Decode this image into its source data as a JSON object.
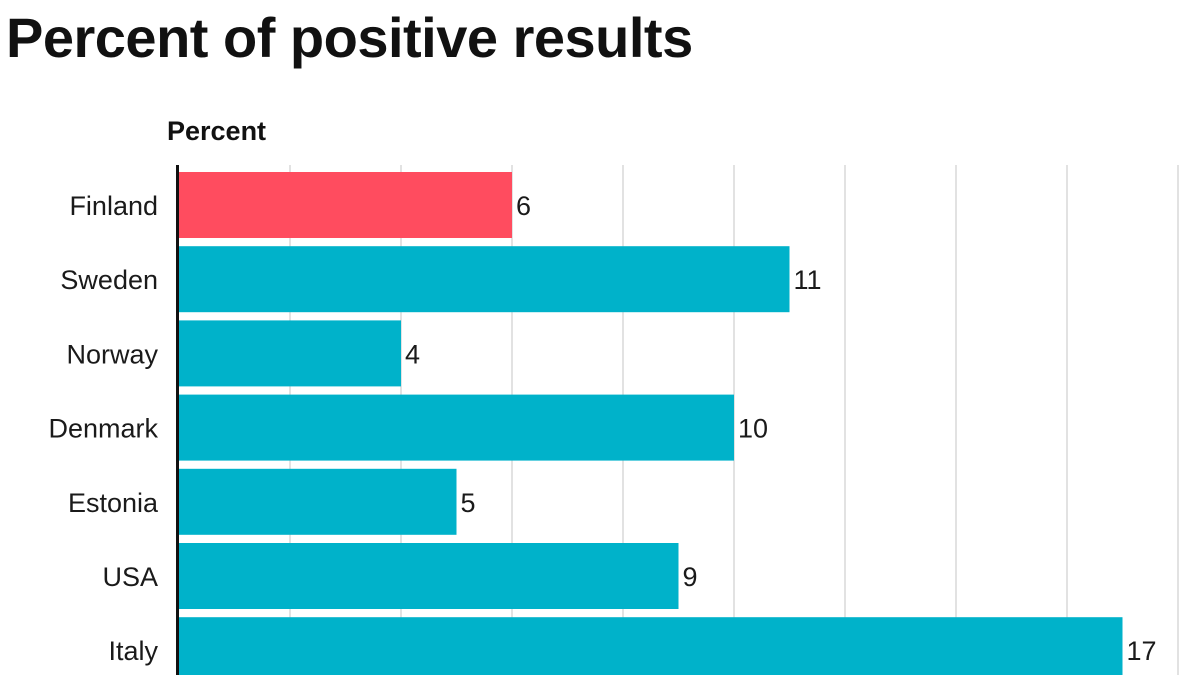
{
  "chart_data": {
    "type": "bar",
    "orientation": "horizontal",
    "title": "Percent of positive results",
    "unit_label": "Percent",
    "categories": [
      "Finland",
      "Sweden",
      "Norway",
      "Denmark",
      "Estonia",
      "USA",
      "Italy"
    ],
    "values": [
      6,
      11,
      4,
      10,
      5,
      9,
      17
    ],
    "value_labels": [
      "6",
      "11",
      "4",
      "10",
      "5",
      "9",
      "17"
    ],
    "xlim": [
      0,
      18
    ],
    "grid": true,
    "gridline_step": 2,
    "legend": "none",
    "colors": {
      "highlight": "#FF4C5F",
      "default": "#00B2CA",
      "gridline": "#D9D9D9",
      "axis": "#111111"
    },
    "highlight_category": "Finland"
  }
}
